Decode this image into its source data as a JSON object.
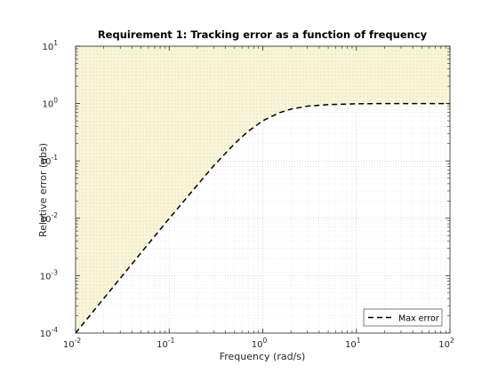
{
  "chart_data": {
    "type": "line",
    "title": "Requirement 1: Tracking error as a function of frequency",
    "xlabel": "Frequency (rad/s)",
    "ylabel": "Relative error (abs)",
    "x_scale": "log",
    "y_scale": "log",
    "xlim": [
      0.01,
      100
    ],
    "ylim": [
      0.0001,
      10
    ],
    "grid": true,
    "legend_position": "bottom-right",
    "x_ticks": [
      {
        "value": 0.01,
        "base": "10",
        "exp": "-2"
      },
      {
        "value": 0.1,
        "base": "10",
        "exp": "-1"
      },
      {
        "value": 1,
        "base": "10",
        "exp": "0"
      },
      {
        "value": 10,
        "base": "10",
        "exp": "1"
      },
      {
        "value": 100,
        "base": "10",
        "exp": "2"
      }
    ],
    "y_ticks": [
      {
        "value": 0.0001,
        "base": "10",
        "exp": "-4"
      },
      {
        "value": 0.001,
        "base": "10",
        "exp": "-3"
      },
      {
        "value": 0.01,
        "base": "10",
        "exp": "-2"
      },
      {
        "value": 0.1,
        "base": "10",
        "exp": "-1"
      },
      {
        "value": 1,
        "base": "10",
        "exp": "0"
      },
      {
        "value": 10,
        "base": "10",
        "exp": "1"
      }
    ],
    "series": [
      {
        "name": "Max error",
        "style": "dashed",
        "color": "#000000",
        "x": [
          0.01,
          0.02,
          0.05,
          0.1,
          0.2,
          0.3,
          0.5,
          0.7,
          1,
          1.5,
          2,
          3,
          5,
          10,
          20,
          50,
          100
        ],
        "y": [
          0.0001,
          0.0004,
          0.0025,
          0.0099,
          0.038,
          0.083,
          0.2,
          0.33,
          0.5,
          0.69,
          0.8,
          0.9,
          0.96,
          0.99,
          1.0,
          1.0,
          1.0
        ]
      }
    ],
    "shaded_region": {
      "description_color": "#f8f5d8",
      "hatch_color": "#c8c4a0",
      "bounded_by_series": "Max error",
      "side": "above"
    }
  }
}
